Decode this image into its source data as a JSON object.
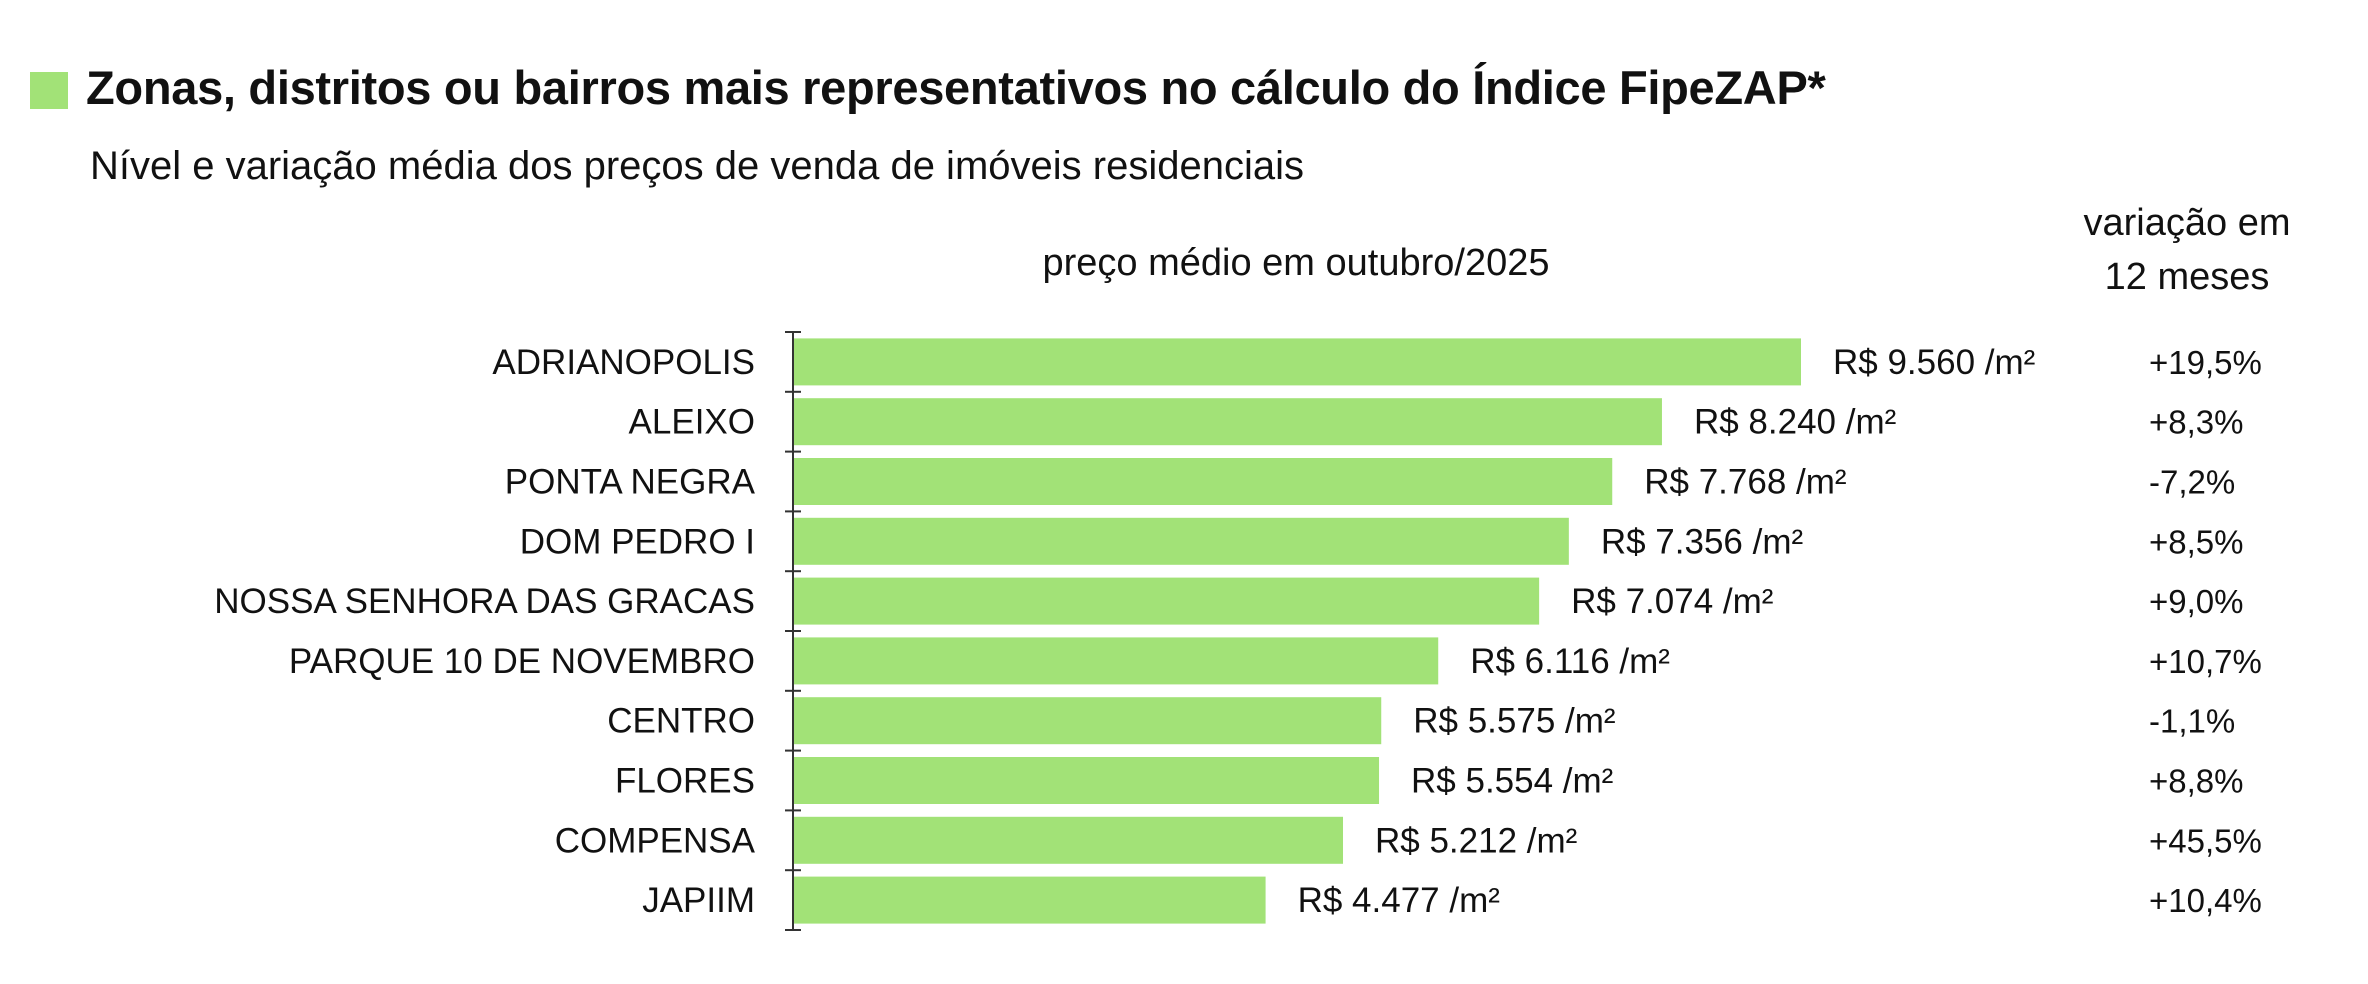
{
  "title": "Zonas, distritos ou bairros mais representativos no cálculo do Índice FipeZAP*",
  "subtitle": "Nível e variação média dos preços de venda de imóveis residenciais",
  "accent_color": "#a2e277",
  "chart_data": {
    "type": "bar",
    "orientation": "horizontal",
    "value_header": "preço médio em outubro/2025",
    "change_header": [
      "variação em",
      "12 meses"
    ],
    "unit": "R$ /m²",
    "categories": [
      "ADRIANOPOLIS",
      "ALEIXO",
      "PONTA NEGRA",
      "DOM PEDRO I",
      "NOSSA SENHORA DAS GRACAS",
      "PARQUE 10 DE NOVEMBRO",
      "CENTRO",
      "FLORES",
      "COMPENSA",
      "JAPIIM"
    ],
    "values": [
      9560,
      8240,
      7768,
      7356,
      7074,
      6116,
      5575,
      5554,
      5212,
      4477
    ],
    "value_labels": [
      "R$ 9.560 /m²",
      "R$ 8.240 /m²",
      "R$ 7.768 /m²",
      "R$ 7.356 /m²",
      "R$ 7.074 /m²",
      "R$ 6.116 /m²",
      "R$ 5.575 /m²",
      "R$ 5.554 /m²",
      "R$ 5.212 /m²",
      "R$ 4.477 /m²"
    ],
    "change_12m": [
      "+19,5%",
      "+8,3%",
      "-7,2%",
      "+8,5%",
      "+9,0%",
      "+10,7%",
      "-1,1%",
      "+8,8%",
      "+45,5%",
      "+10,4%"
    ],
    "bar_color": "#a2e277",
    "grid": false,
    "legend": "none"
  }
}
